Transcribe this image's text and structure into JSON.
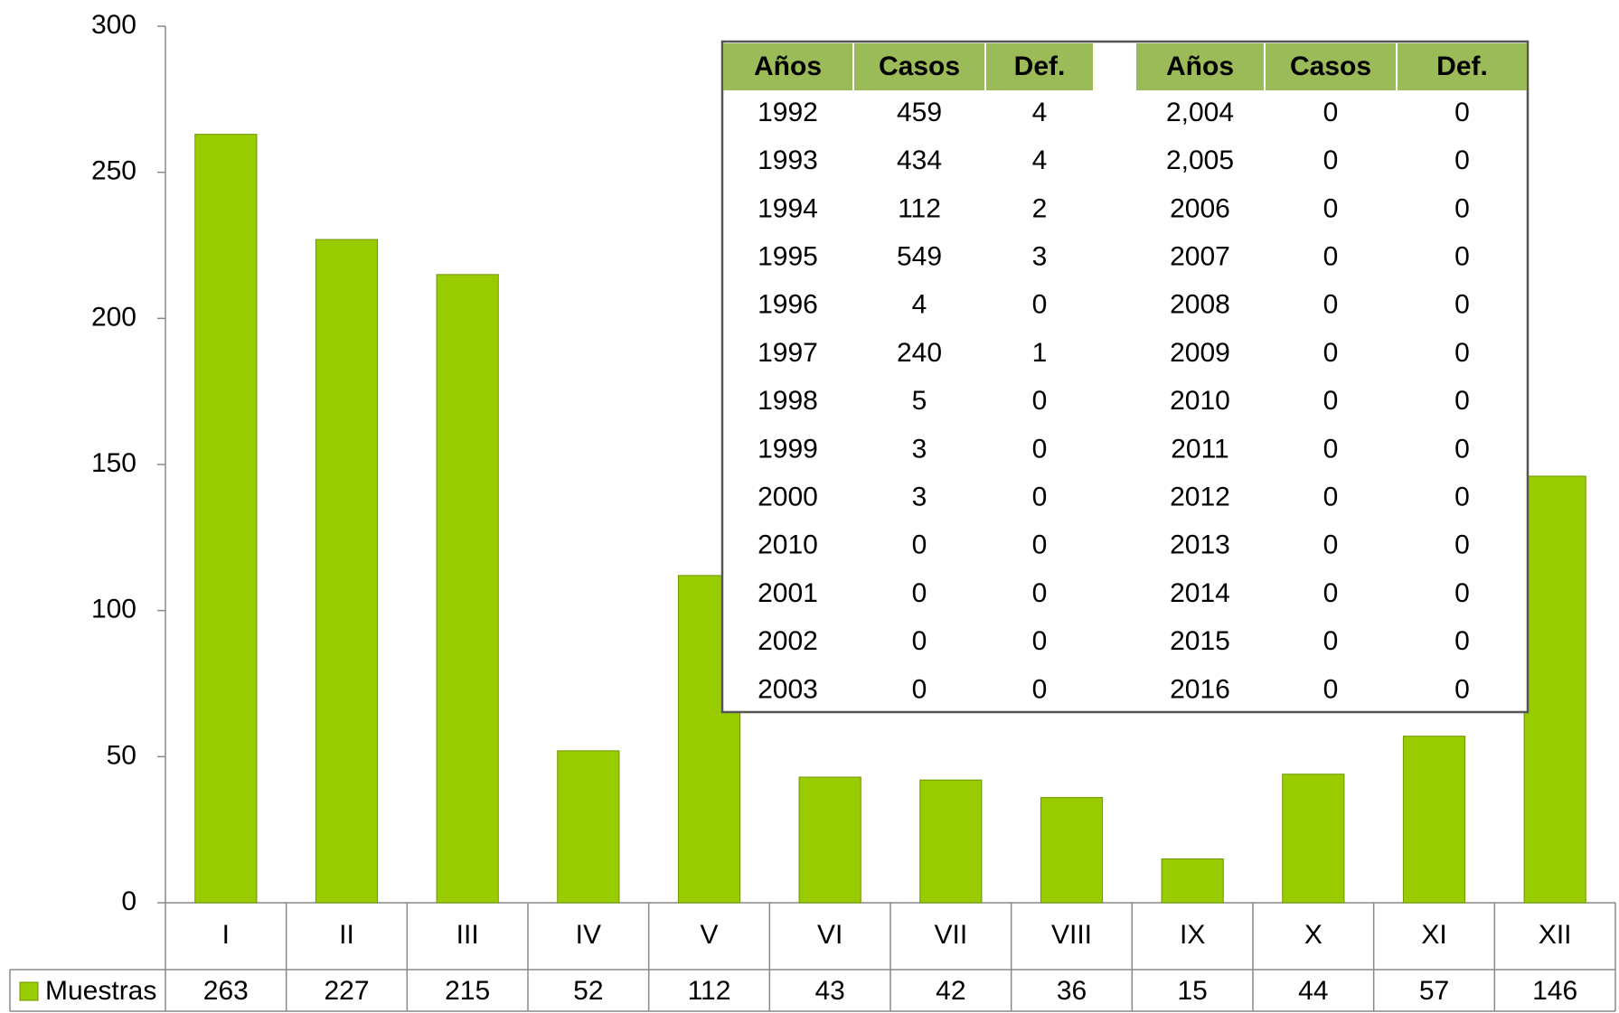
{
  "chart_data": {
    "type": "bar",
    "categories": [
      "I",
      "II",
      "III",
      "IV",
      "V",
      "VI",
      "VII",
      "VIII",
      "IX",
      "X",
      "XI",
      "XII"
    ],
    "series": [
      {
        "name": "Muestras",
        "color": "#99cc00",
        "values": [
          263,
          227,
          215,
          52,
          112,
          43,
          42,
          36,
          15,
          44,
          57,
          146
        ]
      }
    ],
    "ylim": [
      0,
      300
    ],
    "yticks": [
      0,
      50,
      100,
      150,
      200,
      250,
      300
    ],
    "grid": false,
    "inset_table": {
      "header": [
        "Años",
        "Casos",
        "Def.",
        "Años",
        "Casos",
        "Def."
      ],
      "rows": [
        [
          "1992",
          "459",
          "4",
          "2,004",
          "0",
          "0"
        ],
        [
          "1993",
          "434",
          "4",
          "2,005",
          "0",
          "0"
        ],
        [
          "1994",
          "112",
          "2",
          "2006",
          "0",
          "0"
        ],
        [
          "1995",
          "549",
          "3",
          "2007",
          "0",
          "0"
        ],
        [
          "1996",
          "4",
          "0",
          "2008",
          "0",
          "0"
        ],
        [
          "1997",
          "240",
          "1",
          "2009",
          "0",
          "0"
        ],
        [
          "1998",
          "5",
          "0",
          "2010",
          "0",
          "0"
        ],
        [
          "1999",
          "3",
          "0",
          "2011",
          "0",
          "0"
        ],
        [
          "2000",
          "3",
          "0",
          "2012",
          "0",
          "0"
        ],
        [
          "2010",
          "0",
          "0",
          "2013",
          "0",
          "0"
        ],
        [
          "2001",
          "0",
          "0",
          "2014",
          "0",
          "0"
        ],
        [
          "2002",
          "0",
          "0",
          "2015",
          "0",
          "0"
        ],
        [
          "2003",
          "0",
          "0",
          "2016",
          "0",
          "0"
        ]
      ]
    }
  }
}
